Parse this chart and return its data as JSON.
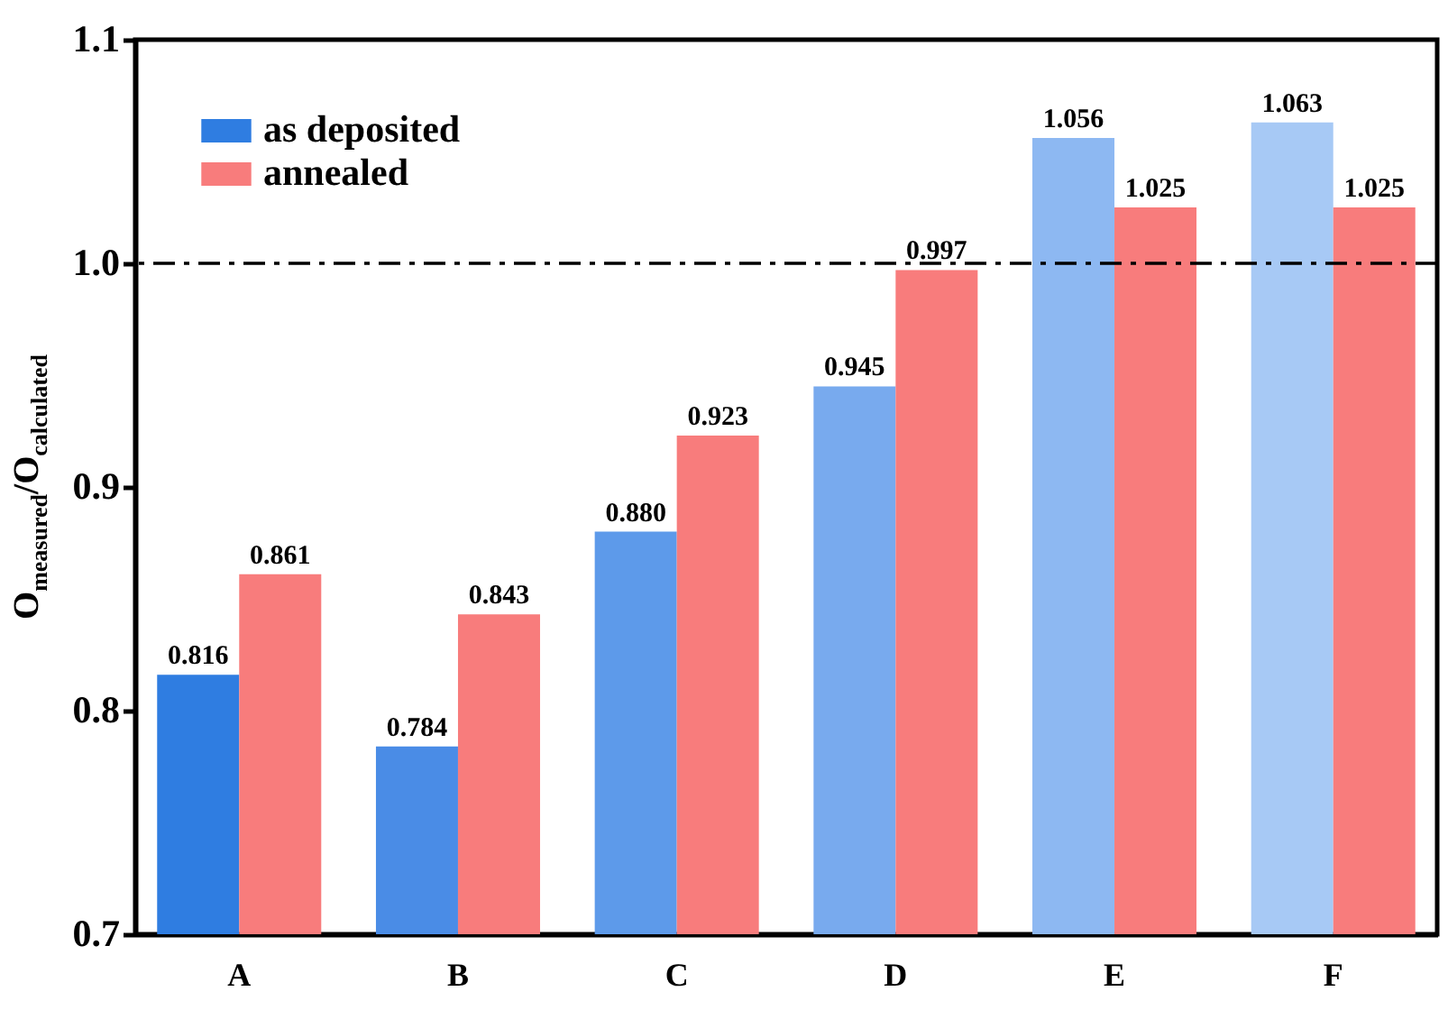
{
  "chart_data": {
    "type": "bar",
    "ylabel": "O$_{measured}$/O$_{calculated}$",
    "categories": [
      "A",
      "B",
      "C",
      "D",
      "E",
      "F"
    ],
    "series": [
      {
        "name": "as deposited",
        "color": "#2f7de1",
        "colors": [
          "#2f7de1",
          "#4a8ce6",
          "#5d9aea",
          "#78aaee",
          "#8db8f2",
          "#a7c9f5"
        ],
        "values": [
          0.816,
          0.784,
          0.88,
          0.945,
          1.056,
          1.063
        ],
        "value_labels": [
          "0.816",
          "0.784",
          "0.880",
          "0.945",
          "1.056",
          "1.063"
        ]
      },
      {
        "name": "annealed",
        "color": "#f87c7c",
        "values": [
          0.861,
          0.843,
          0.923,
          0.997,
          1.025,
          1.025
        ],
        "value_labels": [
          "0.861",
          "0.843",
          "0.923",
          "0.997",
          "1.025",
          "1.025"
        ]
      }
    ],
    "ylim": [
      0.7,
      1.1
    ],
    "yticks": [
      0.7,
      0.8,
      0.9,
      {
        "value": 1.0,
        "label": "1.0"
      },
      1.1
    ],
    "ref_lines": [
      {
        "axis": "y",
        "value": 1.0,
        "color": "#000000",
        "line_style": "dashdot"
      }
    ],
    "legend": "top left",
    "grid": false
  }
}
